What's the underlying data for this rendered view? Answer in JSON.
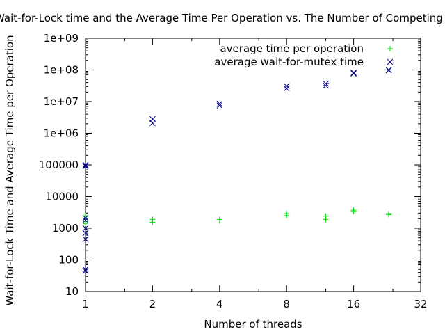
{
  "chart_data": {
    "type": "scatter",
    "title": "Wait-for-Lock time and the Average Time Per Operation vs. The Number of Competing Threads",
    "xlabel": "Number of threads",
    "ylabel": "Wait-for-Lock Time and Average Time per Operation",
    "x_scale": "log2",
    "y_scale": "log10",
    "xlim": [
      1,
      32
    ],
    "ylim": [
      10,
      1000000000
    ],
    "x_ticks": [
      1,
      2,
      4,
      8,
      16,
      32
    ],
    "x_tick_labels": [
      "1",
      "2",
      "4",
      "8",
      "16",
      "32"
    ],
    "y_ticks": [
      10,
      100,
      1000,
      10000,
      100000,
      1000000,
      10000000,
      100000000,
      1000000000
    ],
    "y_tick_labels": [
      "10",
      "100",
      "1000",
      "10000",
      "100000",
      "1e+06",
      "1e+07",
      "1e+08",
      "1e+09"
    ],
    "grid": false,
    "legend_position": "top-right",
    "series": [
      {
        "name": "average time per operation",
        "marker": "+",
        "color": "#00dd00",
        "points": [
          {
            "x": 1,
            "y": 2500
          },
          {
            "x": 1,
            "y": 2000
          },
          {
            "x": 1,
            "y": 1600
          },
          {
            "x": 1,
            "y": 1400
          },
          {
            "x": 2,
            "y": 1900
          },
          {
            "x": 2,
            "y": 1550
          },
          {
            "x": 4,
            "y": 1900
          },
          {
            "x": 4,
            "y": 1700
          },
          {
            "x": 8,
            "y": 2900
          },
          {
            "x": 8,
            "y": 2500
          },
          {
            "x": 12,
            "y": 2400
          },
          {
            "x": 12,
            "y": 1900
          },
          {
            "x": 16,
            "y": 3700
          },
          {
            "x": 16,
            "y": 3400
          },
          {
            "x": 23,
            "y": 2900
          },
          {
            "x": 23,
            "y": 2700
          }
        ]
      },
      {
        "name": "average wait-for-mutex time",
        "marker": "x",
        "color": "#00008b",
        "points": [
          {
            "x": 1,
            "y": 100000
          },
          {
            "x": 1,
            "y": 95000
          },
          {
            "x": 1,
            "y": 90000
          },
          {
            "x": 1,
            "y": 2100
          },
          {
            "x": 1,
            "y": 1800
          },
          {
            "x": 1,
            "y": 1000
          },
          {
            "x": 1,
            "y": 700
          },
          {
            "x": 1,
            "y": 450
          },
          {
            "x": 1,
            "y": 50
          },
          {
            "x": 1,
            "y": 45
          },
          {
            "x": 2,
            "y": 2800000
          },
          {
            "x": 2,
            "y": 2100000
          },
          {
            "x": 4,
            "y": 8500000
          },
          {
            "x": 4,
            "y": 7500000
          },
          {
            "x": 8,
            "y": 31000000
          },
          {
            "x": 8,
            "y": 26000000
          },
          {
            "x": 12,
            "y": 37000000
          },
          {
            "x": 12,
            "y": 32000000
          },
          {
            "x": 16,
            "y": 82000000
          },
          {
            "x": 16,
            "y": 77000000
          },
          {
            "x": 23,
            "y": 100000000
          },
          {
            "x": 23,
            "y": 98000000
          }
        ]
      }
    ]
  }
}
